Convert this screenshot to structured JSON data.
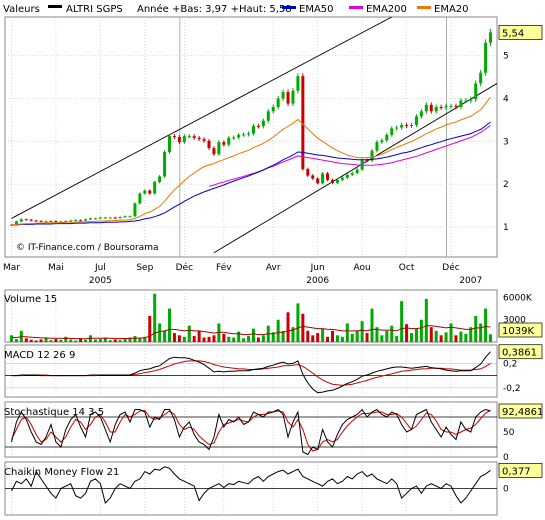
{
  "header": {
    "valeurs_label": "Valeurs",
    "instrument": "ALTRI SGPS",
    "range_text": "Année +Bas: 3,97 +Haut: 5,58",
    "legend": [
      {
        "name": "EMA50",
        "color": "#0000cc"
      },
      {
        "name": "EMA200",
        "color": "#dd00dd"
      },
      {
        "name": "EMA20",
        "color": "#ee7700"
      }
    ]
  },
  "colors": {
    "background": "#ffffff",
    "plot_bg": "#ffffff",
    "grid": "#c8c8c8",
    "up": "#00aa00",
    "down": "#cc0000",
    "tag_bg": "#ffff99",
    "channel": "#000000"
  },
  "chart_data": [
    {
      "type": "line",
      "id": "price",
      "credit": "© IT-Finance.com / Boursorama",
      "ylim": [
        0.3,
        5.9
      ],
      "yticks": [
        1,
        2,
        3,
        4,
        5
      ],
      "ytick_labels": [
        "1",
        "2",
        "3",
        "4",
        "5"
      ],
      "last_value_label": "5,54",
      "months": [
        "Mar",
        "Mai",
        "Jul",
        "Sep",
        "Déc",
        "Fév",
        "Avr",
        "Jun",
        "Aou",
        "Oct",
        "Déc"
      ],
      "month_weeks": [
        0,
        9,
        18,
        27,
        35,
        43,
        53,
        62,
        71,
        80,
        89
      ],
      "years": [
        "2005",
        "2006",
        "2007"
      ],
      "year_weeks": [
        18,
        62,
        93
      ],
      "weeks": 98,
      "close": [
        1.05,
        1.13,
        1.18,
        1.17,
        1.15,
        1.14,
        1.13,
        1.13,
        1.14,
        1.12,
        1.13,
        1.14,
        1.15,
        1.16,
        1.15,
        1.18,
        1.2,
        1.2,
        1.22,
        1.22,
        1.22,
        1.21,
        1.23,
        1.25,
        1.25,
        1.55,
        1.78,
        1.85,
        1.78,
        2.05,
        2.18,
        2.75,
        3.12,
        3.1,
        2.98,
        3.12,
        3.12,
        3.08,
        3.05,
        3.01,
        2.84,
        2.7,
        2.98,
        2.92,
        3.08,
        3.09,
        3.15,
        3.16,
        3.18,
        3.36,
        3.35,
        3.48,
        3.7,
        3.8,
        4.0,
        4.15,
        3.88,
        4.18,
        4.52,
        2.35,
        2.2,
        2.13,
        2.02,
        2.25,
        2.1,
        2.03,
        2.1,
        2.15,
        2.22,
        2.26,
        2.34,
        2.56,
        2.55,
        2.78,
        2.98,
        3.02,
        3.15,
        3.3,
        3.32,
        3.38,
        3.36,
        3.38,
        3.58,
        3.7,
        3.85,
        3.7,
        3.8,
        3.79,
        3.82,
        3.82,
        3.8,
        3.95,
        3.95,
        3.98,
        4.35,
        4.6,
        5.3,
        5.54
      ],
      "ema20": [
        1.05,
        1.06,
        1.07,
        1.08,
        1.08,
        1.09,
        1.09,
        1.1,
        1.1,
        1.1,
        1.1,
        1.11,
        1.11,
        1.11,
        1.12,
        1.12,
        1.13,
        1.13,
        1.14,
        1.14,
        1.15,
        1.15,
        1.16,
        1.16,
        1.17,
        1.2,
        1.25,
        1.31,
        1.35,
        1.41,
        1.48,
        1.6,
        1.74,
        1.87,
        1.97,
        2.08,
        2.18,
        2.26,
        2.34,
        2.41,
        2.45,
        2.48,
        2.53,
        2.57,
        2.62,
        2.66,
        2.71,
        2.75,
        2.79,
        2.85,
        2.9,
        2.95,
        3.02,
        3.1,
        3.19,
        3.28,
        3.35,
        3.42,
        3.51,
        3.4,
        3.29,
        3.18,
        3.07,
        3.0,
        2.92,
        2.84,
        2.78,
        2.73,
        2.68,
        2.65,
        2.62,
        2.62,
        2.62,
        2.63,
        2.66,
        2.7,
        2.75,
        2.81,
        2.86,
        2.9,
        2.95,
        2.99,
        3.05,
        3.11,
        3.18,
        3.23,
        3.29,
        3.33,
        3.38,
        3.42,
        3.45,
        3.5,
        3.54,
        3.58,
        3.66,
        3.74,
        3.88,
        4.03
      ],
      "ema50": [
        1.05,
        1.05,
        1.06,
        1.06,
        1.06,
        1.07,
        1.07,
        1.07,
        1.07,
        1.08,
        1.08,
        1.08,
        1.08,
        1.09,
        1.09,
        1.09,
        1.1,
        1.1,
        1.1,
        1.11,
        1.11,
        1.11,
        1.12,
        1.12,
        1.13,
        1.14,
        1.16,
        1.19,
        1.21,
        1.24,
        1.28,
        1.33,
        1.4,
        1.47,
        1.53,
        1.6,
        1.66,
        1.72,
        1.77,
        1.82,
        1.86,
        1.9,
        1.94,
        1.98,
        2.03,
        2.07,
        2.11,
        2.15,
        2.19,
        2.24,
        2.28,
        2.33,
        2.39,
        2.44,
        2.5,
        2.57,
        2.62,
        2.68,
        2.75,
        2.74,
        2.72,
        2.7,
        2.68,
        2.67,
        2.65,
        2.63,
        2.61,
        2.6,
        2.59,
        2.58,
        2.57,
        2.57,
        2.57,
        2.58,
        2.59,
        2.61,
        2.63,
        2.66,
        2.69,
        2.72,
        2.74,
        2.77,
        2.81,
        2.85,
        2.89,
        2.92,
        2.96,
        2.99,
        3.03,
        3.06,
        3.09,
        3.12,
        3.15,
        3.18,
        3.23,
        3.28,
        3.36,
        3.45
      ],
      "ema200": [
        null,
        null,
        null,
        null,
        null,
        null,
        null,
        null,
        null,
        null,
        null,
        null,
        null,
        null,
        null,
        null,
        null,
        null,
        null,
        null,
        null,
        null,
        null,
        null,
        null,
        null,
        null,
        null,
        null,
        null,
        null,
        null,
        null,
        null,
        null,
        null,
        null,
        null,
        null,
        null,
        1.95,
        1.98,
        2.02,
        2.05,
        2.09,
        2.12,
        2.15,
        2.18,
        2.22,
        2.25,
        2.29,
        2.33,
        2.38,
        2.42,
        2.47,
        2.52,
        2.56,
        2.61,
        2.66,
        2.64,
        2.62,
        2.6,
        2.58,
        2.56,
        2.54,
        2.52,
        2.5,
        2.48,
        2.47,
        2.46,
        2.45,
        2.44,
        2.44,
        2.44,
        2.45,
        2.46,
        2.48,
        2.5,
        2.53,
        2.56,
        2.59,
        2.62,
        2.65,
        2.69,
        2.73,
        2.77,
        2.81,
        2.85,
        2.89,
        2.93,
        2.97,
        3.01,
        3.05,
        3.09,
        3.15,
        3.21,
        3.29,
        3.37
      ]
    },
    {
      "type": "bar",
      "id": "volume",
      "title": "Volume 15",
      "ylim": [
        0,
        7000
      ],
      "ytick_labels": [
        "6000K",
        "3000"
      ],
      "yticks": [
        6000,
        3000
      ],
      "last_value_label": "1039K",
      "values": [
        900,
        400,
        1500,
        500,
        300,
        200,
        350,
        600,
        250,
        400,
        300,
        700,
        350,
        200,
        450,
        300,
        900,
        350,
        400,
        600,
        250,
        350,
        300,
        400,
        600,
        800,
        500,
        700,
        3500,
        6500,
        2500,
        1500,
        4500,
        1200,
        900,
        700,
        2200,
        800,
        1500,
        600,
        700,
        900,
        2500,
        1100,
        700,
        600,
        1400,
        500,
        800,
        1800,
        600,
        900,
        2200,
        1300,
        3000,
        1500,
        4000,
        2000,
        5200,
        3800,
        1500,
        900,
        1200,
        1800,
        700,
        1500,
        900,
        700,
        2500,
        1100,
        1500,
        2800,
        1200,
        4500,
        2000,
        900,
        1500,
        2200,
        800,
        5500,
        2400,
        1200,
        1800,
        3000,
        5800,
        2000,
        1500,
        900,
        1300,
        2500,
        900,
        1400,
        1100,
        2000,
        3500,
        2500,
        4500,
        1039
      ],
      "average": [
        600,
        600,
        700,
        700,
        650,
        600,
        550,
        550,
        500,
        500,
        480,
        500,
        480,
        460,
        460,
        450,
        500,
        500,
        500,
        520,
        500,
        480,
        470,
        470,
        480,
        500,
        520,
        560,
        800,
        1200,
        1400,
        1500,
        1700,
        1700,
        1600,
        1500,
        1600,
        1500,
        1500,
        1400,
        1300,
        1200,
        1300,
        1300,
        1200,
        1100,
        1100,
        1000,
        1000,
        1100,
        1000,
        1000,
        1100,
        1100,
        1300,
        1300,
        1500,
        1600,
        1900,
        2100,
        2000,
        1900,
        1800,
        1800,
        1700,
        1700,
        1600,
        1500,
        1500,
        1500,
        1500,
        1600,
        1500,
        1700,
        1700,
        1600,
        1600,
        1600,
        1500,
        1800,
        1900,
        1800,
        1800,
        1900,
        2200,
        2200,
        2100,
        2000,
        1900,
        2000,
        1900,
        1800,
        1700,
        1700,
        1900,
        1900,
        2100,
        2000
      ]
    },
    {
      "type": "line",
      "id": "macd",
      "title": "MACD 12 26 9",
      "ylim": [
        -0.35,
        0.5
      ],
      "yticks": [
        0.2,
        0,
        -0.2
      ],
      "ytick_labels": [
        "0,2",
        "",
        "-0,2"
      ],
      "last_value_label": "0,3861",
      "macd": [
        0,
        0,
        0.01,
        0.01,
        0.01,
        0.01,
        0,
        0,
        0,
        0,
        0,
        0,
        0,
        0,
        0,
        0,
        0.01,
        0.01,
        0.01,
        0.01,
        0.01,
        0.01,
        0.01,
        0.01,
        0.01,
        0.04,
        0.08,
        0.1,
        0.11,
        0.14,
        0.16,
        0.22,
        0.28,
        0.3,
        0.29,
        0.29,
        0.28,
        0.25,
        0.22,
        0.18,
        0.12,
        0.06,
        0.07,
        0.06,
        0.07,
        0.07,
        0.08,
        0.08,
        0.08,
        0.1,
        0.11,
        0.12,
        0.15,
        0.17,
        0.2,
        0.22,
        0.19,
        0.2,
        0.24,
        0.02,
        -0.12,
        -0.22,
        -0.28,
        -0.27,
        -0.25,
        -0.24,
        -0.21,
        -0.17,
        -0.13,
        -0.1,
        -0.06,
        -0.01,
        0.01,
        0.04,
        0.07,
        0.09,
        0.11,
        0.13,
        0.14,
        0.14,
        0.13,
        0.12,
        0.13,
        0.14,
        0.15,
        0.13,
        0.12,
        0.11,
        0.09,
        0.08,
        0.07,
        0.08,
        0.08,
        0.08,
        0.13,
        0.19,
        0.3,
        0.39
      ],
      "signal": [
        0,
        0,
        0,
        0.01,
        0.01,
        0.01,
        0.01,
        0.01,
        0,
        0,
        0,
        0,
        0,
        0,
        0,
        0,
        0,
        0,
        0.01,
        0.01,
        0.01,
        0.01,
        0.01,
        0.01,
        0.01,
        0.02,
        0.03,
        0.05,
        0.06,
        0.08,
        0.1,
        0.13,
        0.16,
        0.19,
        0.21,
        0.23,
        0.24,
        0.24,
        0.24,
        0.23,
        0.21,
        0.18,
        0.16,
        0.14,
        0.13,
        0.12,
        0.11,
        0.11,
        0.1,
        0.1,
        0.1,
        0.11,
        0.12,
        0.13,
        0.14,
        0.16,
        0.16,
        0.17,
        0.18,
        0.15,
        0.1,
        0.04,
        -0.02,
        -0.07,
        -0.11,
        -0.14,
        -0.15,
        -0.16,
        -0.15,
        -0.14,
        -0.12,
        -0.1,
        -0.08,
        -0.05,
        -0.03,
        -0.01,
        0.01,
        0.03,
        0.05,
        0.07,
        0.08,
        0.09,
        0.1,
        0.11,
        0.11,
        0.12,
        0.12,
        0.12,
        0.11,
        0.11,
        0.1,
        0.09,
        0.09,
        0.09,
        0.1,
        0.11,
        0.15,
        0.2
      ]
    },
    {
      "type": "line",
      "id": "stoch",
      "title": "Stochastique 14 3 5",
      "ylim": [
        0,
        110
      ],
      "yticks": [
        50,
        0
      ],
      "ytick_labels": [
        "50",
        "0"
      ],
      "guide_lines": [
        80,
        20
      ],
      "last_value_label": "92,4861",
      "k": [
        30,
        70,
        90,
        75,
        50,
        30,
        25,
        40,
        65,
        30,
        20,
        55,
        75,
        85,
        60,
        40,
        85,
        90,
        80,
        55,
        30,
        65,
        85,
        90,
        70,
        95,
        95,
        90,
        60,
        80,
        75,
        95,
        95,
        75,
        40,
        60,
        70,
        45,
        30,
        25,
        15,
        40,
        85,
        60,
        75,
        70,
        80,
        65,
        70,
        90,
        85,
        80,
        90,
        90,
        95,
        85,
        40,
        70,
        90,
        10,
        5,
        20,
        15,
        55,
        30,
        20,
        45,
        65,
        75,
        80,
        85,
        95,
        80,
        90,
        95,
        85,
        80,
        90,
        85,
        65,
        50,
        55,
        85,
        90,
        95,
        70,
        55,
        40,
        60,
        45,
        35,
        70,
        55,
        50,
        80,
        90,
        95,
        92
      ],
      "d": [
        35,
        55,
        75,
        80,
        65,
        45,
        30,
        35,
        50,
        40,
        30,
        40,
        60,
        75,
        70,
        55,
        65,
        80,
        85,
        70,
        50,
        50,
        70,
        85,
        80,
        85,
        92,
        93,
        80,
        75,
        78,
        85,
        92,
        85,
        65,
        55,
        60,
        55,
        42,
        33,
        25,
        28,
        50,
        65,
        68,
        72,
        75,
        72,
        70,
        80,
        85,
        85,
        87,
        90,
        92,
        90,
        70,
        60,
        75,
        55,
        25,
        12,
        15,
        30,
        35,
        30,
        35,
        50,
        62,
        72,
        80,
        87,
        87,
        88,
        90,
        90,
        85,
        85,
        87,
        80,
        67,
        55,
        62,
        75,
        88,
        85,
        72,
        55,
        50,
        50,
        45,
        50,
        55,
        58,
        65,
        77,
        88,
        93
      ]
    },
    {
      "type": "line",
      "id": "cmf",
      "title": "Chaikin Money Flow 21",
      "ylim": [
        -0.55,
        0.55
      ],
      "yticks": [
        0
      ],
      "ytick_labels": [
        "0"
      ],
      "last_value_label": "0,377",
      "values": [
        -0.05,
        0.15,
        0.1,
        0.2,
        0.05,
        0.35,
        0.2,
        0.05,
        -0.1,
        -0.2,
        0.0,
        0.05,
        0.1,
        -0.15,
        -0.2,
        -0.1,
        0.15,
        0.2,
        0.1,
        -0.3,
        -0.2,
        0.0,
        0.1,
        0.05,
        0.0,
        0.15,
        0.2,
        0.35,
        0.3,
        0.4,
        0.38,
        0.45,
        0.42,
        0.3,
        0.2,
        0.15,
        0.1,
        0.05,
        -0.25,
        -0.1,
        0.0,
        0.05,
        0.1,
        0.02,
        0.1,
        0.08,
        0.15,
        0.12,
        0.1,
        0.2,
        0.25,
        0.15,
        0.25,
        0.3,
        0.35,
        0.38,
        0.3,
        0.35,
        0.4,
        0.25,
        0.2,
        0.15,
        0.1,
        0.05,
        0.15,
        0.2,
        0.1,
        0.15,
        0.25,
        0.2,
        0.3,
        0.35,
        0.25,
        0.3,
        0.2,
        0.15,
        0.1,
        0.2,
        0.1,
        -0.2,
        -0.1,
        0.0,
        0.05,
        -0.1,
        0.05,
        0.1,
        0.05,
        0.0,
        0.1,
        0.05,
        -0.15,
        -0.3,
        -0.2,
        -0.05,
        0.1,
        0.25,
        0.3,
        0.377
      ]
    }
  ]
}
